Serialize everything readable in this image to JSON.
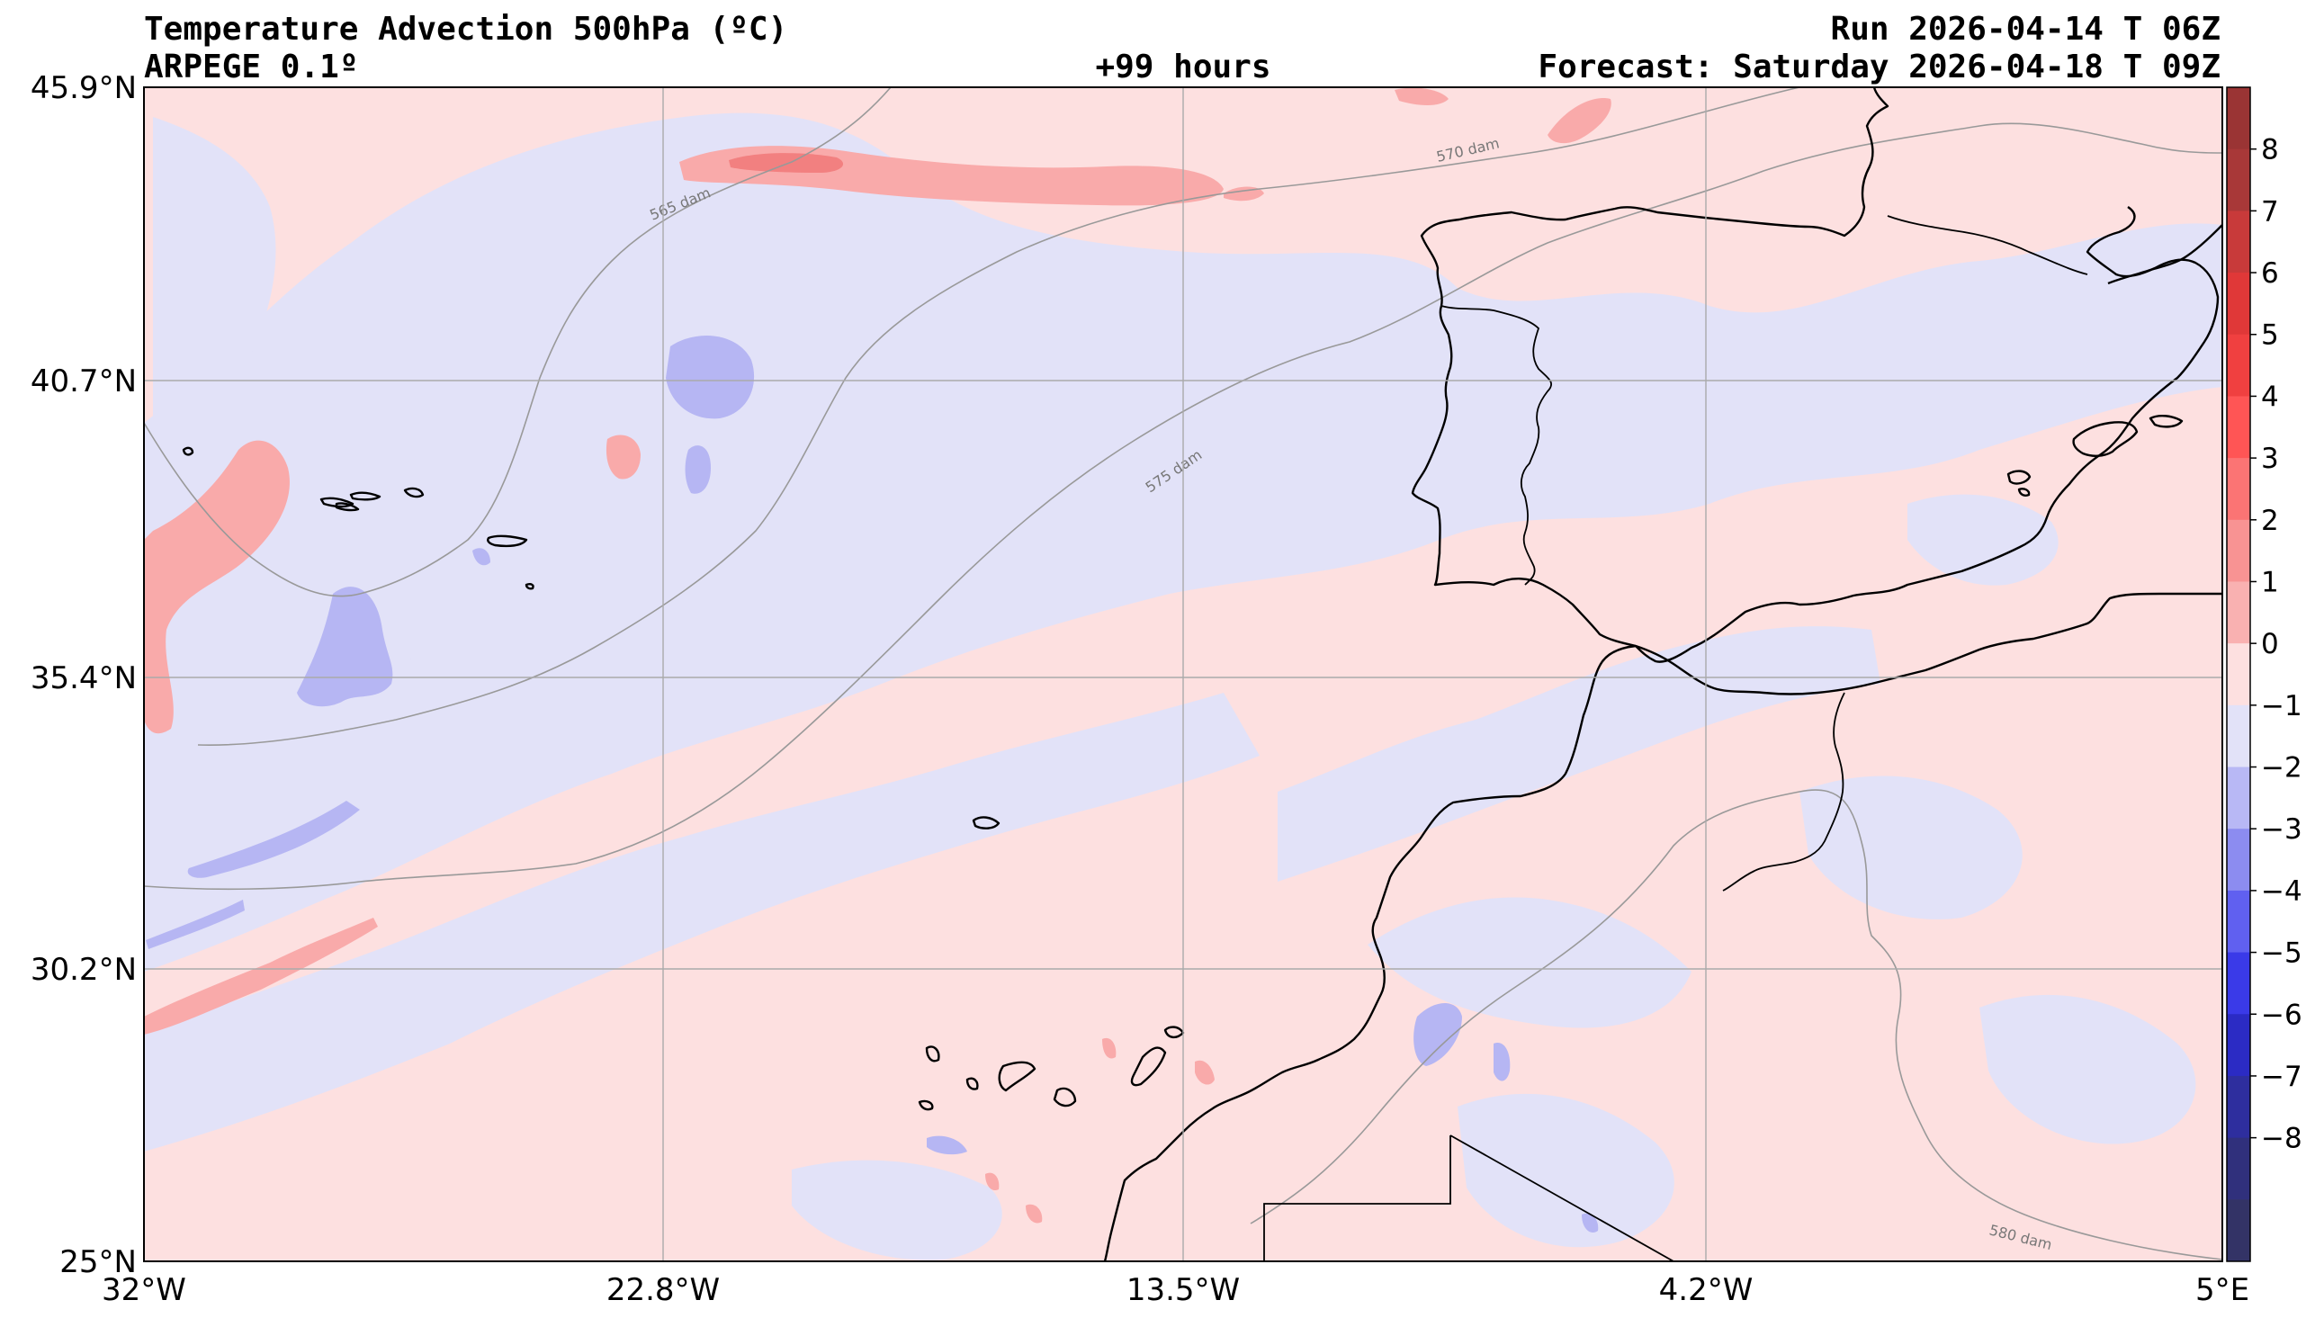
{
  "header": {
    "title": "Temperature Advection  500hPa (ºC)",
    "model": "ARPEGE 0.1º",
    "lead_time": "+99 hours",
    "run": "Run 2026-04-14 T 06Z",
    "forecast": "Forecast: Saturday 2026-04-18 T 09Z"
  },
  "map": {
    "x_ticks": [
      "32°W",
      "22.8°W",
      "13.5°W",
      "4.2°W",
      "5°E"
    ],
    "y_ticks": [
      "45.9°N",
      "40.7°N",
      "35.4°N",
      "30.2°N",
      "25°N"
    ],
    "grid": true,
    "colors": {
      "weak_warm": "#fde0e0",
      "weak_cold": "#e2e2f8",
      "warm_1": "#f9aaaa",
      "warm_2": "#f28080",
      "cold_1": "#b6b6f3",
      "coast": "#000000",
      "height_contour": "#999999"
    },
    "contour_labels": [
      "565 dam",
      "570 dam",
      "575 dam",
      "580 dam"
    ]
  },
  "colorbar": {
    "ticks": [
      "8",
      "7",
      "6",
      "5",
      "4",
      "3",
      "2",
      "1",
      "0",
      "−1",
      "−2",
      "−3",
      "−4",
      "−5",
      "−6",
      "−7",
      "−8"
    ],
    "colors": [
      "#9a3434",
      "#a83838",
      "#c83a3a",
      "#e03838",
      "#f04040",
      "#ff5555",
      "#fb7474",
      "#f89393",
      "#f9b1b1",
      "#fde0e0",
      "#e2e2f8",
      "#b8b8f5",
      "#8c8cf0",
      "#6060f0",
      "#3a3ae8",
      "#2b2bc4",
      "#2e2e9e",
      "#30307c",
      "#333366"
    ]
  }
}
